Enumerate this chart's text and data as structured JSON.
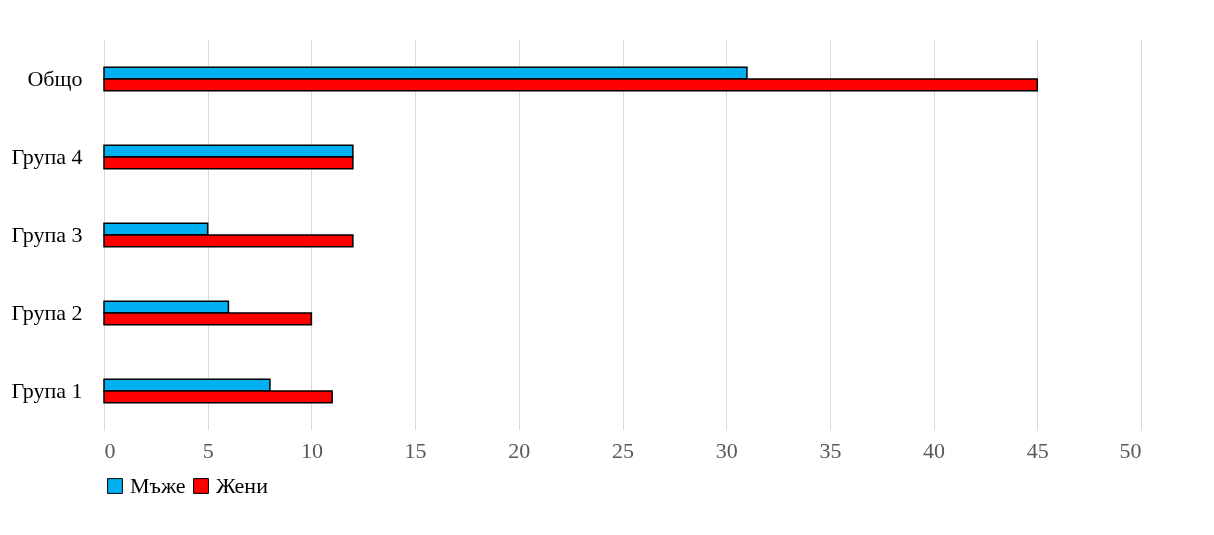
{
  "chart_data": {
    "type": "bar",
    "orientation": "horizontal",
    "categories": [
      "Общо",
      "Група 4",
      "Група 3",
      "Група 2",
      "Група 1"
    ],
    "series": [
      {
        "name": "Мъже",
        "color": "#00b0f0",
        "values": [
          31,
          12,
          5,
          6,
          8
        ]
      },
      {
        "name": "Жени",
        "color": "#ff0000",
        "values": [
          45,
          12,
          12,
          10,
          11
        ]
      }
    ],
    "xlim": [
      0,
      50
    ],
    "xticks": [
      0,
      5,
      10,
      15,
      20,
      25,
      30,
      35,
      40,
      45,
      50
    ],
    "grid": "x",
    "legend": "bottom"
  }
}
